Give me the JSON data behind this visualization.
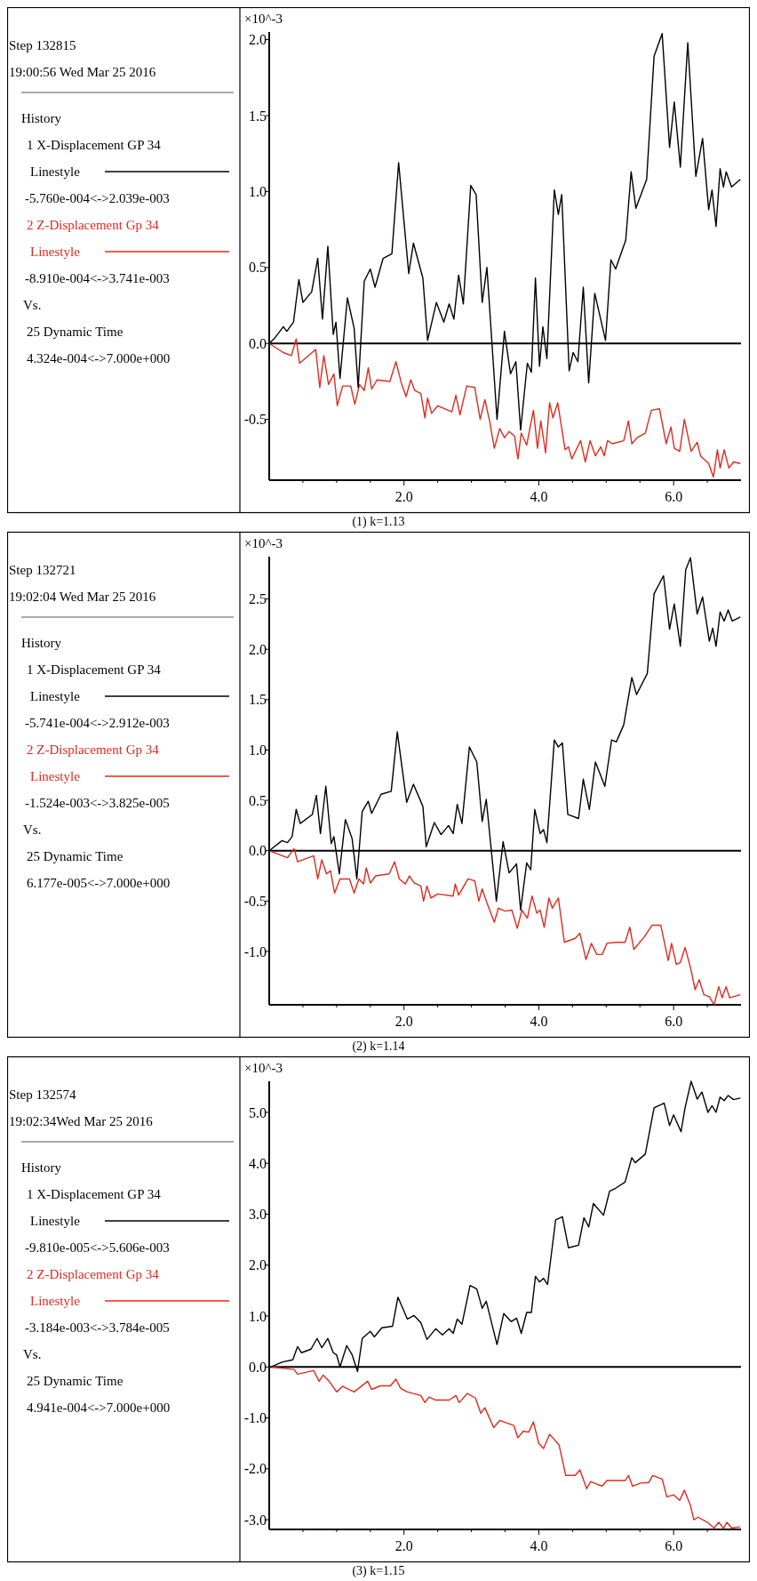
{
  "chart_data": [
    {
      "type": "line",
      "title": "(1) k=1.13",
      "ylabel": "×10^-3",
      "legend": "left",
      "xlim": [
        0,
        7
      ],
      "ylim": [
        -0.9,
        2.05
      ],
      "xticks": [
        {
          "value": 0.5,
          "label": null
        },
        {
          "value": 1,
          "label": null
        },
        {
          "value": 1.5,
          "label": null
        },
        {
          "value": 2,
          "label": "2.0"
        },
        {
          "value": 2.5,
          "label": null
        },
        {
          "value": 3,
          "label": null
        },
        {
          "value": 3.5,
          "label": null
        },
        {
          "value": 4,
          "label": "4.0"
        },
        {
          "value": 4.5,
          "label": null
        },
        {
          "value": 5,
          "label": null
        },
        {
          "value": 5.5,
          "label": null
        },
        {
          "value": 6,
          "label": "6.0"
        },
        {
          "value": 6.5,
          "label": null
        }
      ],
      "yticks": [
        {
          "value": -0.5,
          "label": "-0.5"
        },
        {
          "value": 0,
          "label": "0.0"
        },
        0.5,
        {
          "value": 1,
          "label": "1.0"
        },
        1.5,
        {
          "value": 2,
          "label": "2.0"
        }
      ],
      "ref_lines": [
        {
          "axis": "y",
          "value": 0,
          "color": "#000000"
        }
      ],
      "annotations": [
        "Step 132815",
        "19:00:56 Wed Mar 25 2016",
        "History",
        "Linestyle",
        "-5.760e-004<->2.039e-003",
        "Linestyle",
        "-8.910e-004<->3.741e-003",
        "Vs.",
        "25 Dynamic Time",
        "4.324e-004<->7.000e+000"
      ],
      "series": [
        {
          "name": "1 X-Displacement GP 34",
          "color": "#000000",
          "x": [
            0,
            0.09,
            0.21,
            0.26,
            0.36,
            0.44,
            0.5,
            0.63,
            0.72,
            0.79,
            0.87,
            0.95,
            0.99,
            1.05,
            1.16,
            1.26,
            1.32,
            1.41,
            1.5,
            1.57,
            1.69,
            1.82,
            1.92,
            2.07,
            2.14,
            2.28,
            2.35,
            2.48,
            2.59,
            2.67,
            2.74,
            2.81,
            2.88,
            2.99,
            3.07,
            3.16,
            3.23,
            3.38,
            3.49,
            3.58,
            3.66,
            3.73,
            3.83,
            3.89,
            3.95,
            4.01,
            4.06,
            4.12,
            4.23,
            4.29,
            4.34,
            4.45,
            4.51,
            4.58,
            4.66,
            4.74,
            4.83,
            4.99,
            5.07,
            5.14,
            5.29,
            5.37,
            5.44,
            5.6,
            5.71,
            5.83,
            5.94,
            6.01,
            6.1,
            6.21,
            6.33,
            6.43,
            6.52,
            6.57,
            6.63,
            6.69,
            6.74,
            6.78,
            6.86,
            6.99
          ],
          "values": [
            0,
            0.04,
            0.11,
            0.08,
            0.14,
            0.42,
            0.27,
            0.34,
            0.56,
            0.16,
            0.64,
            0.06,
            0.14,
            -0.23,
            0.3,
            0.1,
            -0.29,
            0.41,
            0.49,
            0.37,
            0.56,
            0.59,
            1.19,
            0.46,
            0.66,
            0.43,
            0.02,
            0.27,
            0.14,
            0.26,
            0.16,
            0.45,
            0.26,
            1.04,
            0.98,
            0.27,
            0.5,
            -0.5,
            0.08,
            -0.2,
            -0.12,
            -0.57,
            -0.13,
            -0.19,
            0.43,
            -0.15,
            0.11,
            -0.1,
            1.01,
            0.85,
            0.98,
            -0.18,
            -0.06,
            -0.12,
            0.37,
            -0.26,
            0.33,
            0.02,
            0.55,
            0.49,
            0.68,
            1.13,
            0.89,
            1.08,
            1.89,
            2.04,
            1.29,
            1.59,
            1.16,
            1.98,
            1.1,
            1.35,
            0.88,
            1.01,
            0.77,
            1.15,
            1.03,
            1.13,
            1.03,
            1.08
          ]
        },
        {
          "name": "2 Z-Displacement Gp 34",
          "color": "#e02a1e",
          "x": [
            0,
            0.21,
            0.33,
            0.4,
            0.45,
            0.69,
            0.75,
            0.81,
            0.88,
            0.96,
            1.01,
            1.09,
            1.21,
            1.27,
            1.34,
            1.41,
            1.47,
            1.52,
            1.6,
            1.79,
            1.88,
            1.96,
            2.03,
            2.1,
            2.16,
            2.25,
            2.31,
            2.35,
            2.41,
            2.5,
            2.71,
            2.77,
            2.83,
            2.93,
            3.05,
            3.13,
            3.2,
            3.27,
            3.34,
            3.42,
            3.49,
            3.56,
            3.64,
            3.69,
            3.74,
            3.82,
            3.92,
            3.98,
            4.03,
            4.1,
            4.16,
            4.21,
            4.28,
            4.39,
            4.44,
            4.49,
            4.62,
            4.69,
            4.76,
            4.84,
            4.92,
            4.97,
            5.02,
            5.09,
            5.26,
            5.33,
            5.38,
            5.46,
            5.58,
            5.67,
            5.79,
            5.89,
            5.96,
            6.01,
            6.09,
            6.16,
            6.26,
            6.35,
            6.4,
            6.52,
            6.59,
            6.65,
            6.69,
            6.75,
            6.82,
            6.89,
            6.99
          ],
          "values": [
            0,
            -0.06,
            -0.08,
            0.03,
            -0.13,
            -0.04,
            -0.29,
            -0.08,
            -0.27,
            -0.2,
            -0.41,
            -0.28,
            -0.28,
            -0.4,
            -0.27,
            -0.31,
            -0.16,
            -0.3,
            -0.24,
            -0.25,
            -0.12,
            -0.26,
            -0.35,
            -0.24,
            -0.31,
            -0.33,
            -0.49,
            -0.36,
            -0.46,
            -0.41,
            -0.45,
            -0.34,
            -0.47,
            -0.28,
            -0.29,
            -0.5,
            -0.37,
            -0.51,
            -0.69,
            -0.56,
            -0.62,
            -0.58,
            -0.61,
            -0.76,
            -0.59,
            -0.67,
            -0.44,
            -0.69,
            -0.51,
            -0.72,
            -0.39,
            -0.49,
            -0.39,
            -0.7,
            -0.68,
            -0.76,
            -0.64,
            -0.78,
            -0.64,
            -0.74,
            -0.68,
            -0.74,
            -0.64,
            -0.66,
            -0.64,
            -0.51,
            -0.66,
            -0.62,
            -0.59,
            -0.44,
            -0.43,
            -0.66,
            -0.55,
            -0.69,
            -0.71,
            -0.5,
            -0.71,
            -0.65,
            -0.74,
            -0.79,
            -0.88,
            -0.7,
            -0.82,
            -0.7,
            -0.82,
            -0.78,
            -0.79
          ]
        }
      ]
    },
    {
      "type": "line",
      "title": "(2) k=1.14",
      "ylabel": "×10^-3",
      "legend": "left",
      "xlim": [
        0,
        7
      ],
      "ylim": [
        -1.53,
        2.92
      ],
      "xticks": [
        {
          "value": 0.5,
          "label": null
        },
        {
          "value": 1,
          "label": null
        },
        {
          "value": 1.5,
          "label": null
        },
        {
          "value": 2,
          "label": "2.0"
        },
        {
          "value": 2.5,
          "label": null
        },
        {
          "value": 3,
          "label": null
        },
        {
          "value": 3.5,
          "label": null
        },
        {
          "value": 4,
          "label": "4.0"
        },
        {
          "value": 4.5,
          "label": null
        },
        {
          "value": 5,
          "label": null
        },
        {
          "value": 5.5,
          "label": null
        },
        {
          "value": 6,
          "label": "6.0"
        },
        {
          "value": 6.5,
          "label": null
        }
      ],
      "yticks": [
        {
          "value": -1,
          "label": "-1.0"
        },
        {
          "value": -0.5,
          "label": "-0.5"
        },
        {
          "value": 0,
          "label": "0.0"
        },
        0.5,
        {
          "value": 1,
          "label": "1.0"
        },
        1.5,
        {
          "value": 2,
          "label": "2.0"
        },
        2.5
      ],
      "ref_lines": [
        {
          "axis": "y",
          "value": 0,
          "color": "#000000"
        }
      ],
      "annotations": [
        "Step 132721",
        "19:02:04 Wed Mar 25 2016",
        "History",
        "Linestyle",
        "-5.741e-004<->2.912e-003",
        "Linestyle",
        "-1.524e-003<->3.825e-005",
        "Vs.",
        "25 Dynamic Time",
        "6.177e-005<->7.000e+000"
      ],
      "series": [
        {
          "name": "1 X-Displacement GP 34",
          "color": "#000000",
          "x": [
            0,
            0.19,
            0.27,
            0.34,
            0.4,
            0.46,
            0.64,
            0.7,
            0.76,
            0.84,
            0.92,
            0.96,
            1.04,
            1.13,
            1.23,
            1.3,
            1.38,
            1.47,
            1.52,
            1.66,
            1.81,
            1.9,
            2.04,
            2.14,
            2.28,
            2.33,
            2.45,
            2.55,
            2.66,
            2.73,
            2.79,
            2.86,
            2.97,
            3.08,
            3.16,
            3.22,
            3.37,
            3.47,
            3.56,
            3.67,
            3.73,
            3.82,
            3.88,
            3.94,
            4.02,
            4.07,
            4.12,
            4.23,
            4.29,
            4.35,
            4.43,
            4.59,
            4.66,
            4.75,
            4.84,
            4.98,
            5.08,
            5.15,
            5.26,
            5.38,
            5.45,
            5.61,
            5.71,
            5.85,
            5.94,
            6.01,
            6.1,
            6.18,
            6.25,
            6.35,
            6.43,
            6.53,
            6.58,
            6.63,
            6.69,
            6.75,
            6.81,
            6.87,
            6.99
          ],
          "values": [
            0,
            0.1,
            0.08,
            0.14,
            0.41,
            0.27,
            0.36,
            0.55,
            0.17,
            0.64,
            0.07,
            0.14,
            -0.23,
            0.31,
            0.12,
            -0.28,
            0.39,
            0.49,
            0.37,
            0.56,
            0.59,
            1.18,
            0.48,
            0.66,
            0.44,
            0.04,
            0.28,
            0.16,
            0.25,
            0.17,
            0.46,
            0.27,
            1.03,
            0.88,
            0.29,
            0.51,
            -0.5,
            0.09,
            -0.22,
            -0.13,
            -0.59,
            -0.12,
            -0.19,
            0.41,
            0.17,
            0.21,
            0.08,
            1.1,
            1.03,
            1.07,
            0.36,
            0.32,
            0.71,
            0.41,
            0.88,
            0.64,
            1.1,
            1.08,
            1.25,
            1.72,
            1.55,
            1.76,
            2.55,
            2.73,
            2.2,
            2.45,
            2.03,
            2.79,
            2.91,
            2.35,
            2.52,
            2.08,
            2.21,
            2.03,
            2.37,
            2.28,
            2.39,
            2.28,
            2.32
          ]
        },
        {
          "name": "2 Z-Displacement Gp 34",
          "color": "#e02a1e",
          "x": [
            0,
            0.27,
            0.37,
            0.42,
            0.66,
            0.72,
            0.78,
            0.85,
            0.91,
            0.97,
            1.05,
            1.19,
            1.26,
            1.33,
            1.4,
            1.44,
            1.5,
            1.58,
            1.78,
            1.86,
            1.93,
            2.02,
            2.08,
            2.15,
            2.25,
            2.29,
            2.34,
            2.4,
            2.5,
            2.73,
            2.76,
            2.81,
            2.95,
            3.05,
            3.11,
            3.16,
            3.22,
            3.34,
            3.4,
            3.5,
            3.6,
            3.68,
            3.75,
            3.83,
            3.9,
            3.97,
            4.02,
            4.08,
            4.15,
            4.2,
            4.29,
            4.38,
            4.54,
            4.61,
            4.7,
            4.78,
            4.86,
            4.94,
            5.01,
            5.14,
            5.28,
            5.35,
            5.41,
            5.56,
            5.68,
            5.81,
            5.92,
            5.97,
            6.04,
            6.1,
            6.17,
            6.25,
            6.32,
            6.38,
            6.45,
            6.53,
            6.6,
            6.67,
            6.72,
            6.78,
            6.83,
            6.99
          ],
          "values": [
            0,
            -0.07,
            0.02,
            -0.11,
            -0.05,
            -0.28,
            -0.09,
            -0.23,
            -0.2,
            -0.42,
            -0.28,
            -0.28,
            -0.42,
            -0.28,
            -0.33,
            -0.17,
            -0.32,
            -0.25,
            -0.23,
            -0.11,
            -0.28,
            -0.33,
            -0.25,
            -0.32,
            -0.35,
            -0.5,
            -0.35,
            -0.47,
            -0.43,
            -0.45,
            -0.33,
            -0.44,
            -0.28,
            -0.3,
            -0.5,
            -0.38,
            -0.5,
            -0.71,
            -0.57,
            -0.6,
            -0.59,
            -0.77,
            -0.59,
            -0.67,
            -0.45,
            -0.62,
            -0.59,
            -0.76,
            -0.47,
            -0.57,
            -0.47,
            -0.91,
            -0.87,
            -0.82,
            -1.08,
            -0.92,
            -1.03,
            -1.03,
            -0.92,
            -0.91,
            -0.91,
            -0.76,
            -0.98,
            -0.86,
            -0.74,
            -0.74,
            -1.09,
            -0.92,
            -1.13,
            -1.11,
            -0.96,
            -1.16,
            -1.38,
            -1.28,
            -1.43,
            -1.45,
            -1.53,
            -1.35,
            -1.46,
            -1.35,
            -1.46,
            -1.43
          ]
        }
      ]
    },
    {
      "type": "line",
      "title": "(3) k=1.15",
      "ylabel": "×10^-3",
      "legend": "left",
      "xlim": [
        0,
        7
      ],
      "ylim": [
        -3.19,
        5.61
      ],
      "xticks": [
        {
          "value": 0.5,
          "label": null
        },
        {
          "value": 1,
          "label": null
        },
        {
          "value": 1.5,
          "label": null
        },
        {
          "value": 2,
          "label": "2.0"
        },
        {
          "value": 2.5,
          "label": null
        },
        {
          "value": 3,
          "label": null
        },
        {
          "value": 3.5,
          "label": null
        },
        {
          "value": 4,
          "label": "4.0"
        },
        {
          "value": 4.5,
          "label": null
        },
        {
          "value": 5,
          "label": null
        },
        {
          "value": 5.5,
          "label": null
        },
        {
          "value": 6,
          "label": "6.0"
        },
        {
          "value": 6.5,
          "label": null
        }
      ],
      "yticks": [
        {
          "value": -3,
          "label": "-3.0"
        },
        {
          "value": -2,
          "label": "-2.0"
        },
        {
          "value": -1,
          "label": "-1.0"
        },
        {
          "value": 0,
          "label": "0.0"
        },
        {
          "value": 1,
          "label": "1.0"
        },
        {
          "value": 2,
          "label": "2.0"
        },
        {
          "value": 3,
          "label": "3.0"
        },
        {
          "value": 4,
          "label": "4.0"
        },
        {
          "value": 5,
          "label": "5.0"
        }
      ],
      "ref_lines": [
        {
          "axis": "y",
          "value": 0,
          "color": "#000000"
        }
      ],
      "annotations": [
        "Step 132574",
        "19:02:34Wed Mar 25 2016",
        "History",
        "Linestyle",
        "-9.810e-005<->5.606e-003",
        "Linestyle",
        "-3.184e-003<->3.784e-005",
        "Vs.",
        "25 Dynamic Time",
        "4.941e-004<->7.000e+000"
      ],
      "series": [
        {
          "name": "1 X-Displacement GP 34",
          "color": "#000000",
          "x": [
            0.02,
            0.2,
            0.35,
            0.42,
            0.48,
            0.62,
            0.71,
            0.78,
            0.87,
            0.95,
            1,
            1.05,
            1.15,
            1.23,
            1.31,
            1.38,
            1.5,
            1.56,
            1.67,
            1.83,
            1.91,
            2.05,
            2.15,
            2.25,
            2.34,
            2.47,
            2.57,
            2.67,
            2.73,
            2.79,
            2.86,
            2.98,
            3.08,
            3.16,
            3.22,
            3.38,
            3.48,
            3.59,
            3.67,
            3.74,
            3.82,
            3.89,
            3.95,
            4.01,
            4.07,
            4.13,
            4.25,
            4.35,
            4.44,
            4.59,
            4.67,
            4.74,
            4.81,
            4.96,
            5.05,
            5.14,
            5.28,
            5.38,
            5.43,
            5.58,
            5.71,
            5.86,
            5.94,
            6,
            6.11,
            6.17,
            6.26,
            6.35,
            6.42,
            6.51,
            6.57,
            6.63,
            6.69,
            6.75,
            6.81,
            6.89,
            6.99
          ],
          "values": [
            0,
            0.1,
            0.14,
            0.4,
            0.28,
            0.35,
            0.56,
            0.38,
            0.56,
            0.28,
            0.24,
            0,
            0.42,
            0.24,
            -0.09,
            0.56,
            0.7,
            0.59,
            0.77,
            0.8,
            1.37,
            0.94,
            1.01,
            0.87,
            0.54,
            0.75,
            0.63,
            0.75,
            0.66,
            0.94,
            0.84,
            1.6,
            1.53,
            1.15,
            1.29,
            0.44,
            1.05,
            0.89,
            0.96,
            0.66,
            1.07,
            1.07,
            1.78,
            1.67,
            1.74,
            1.62,
            2.89,
            2.95,
            2.34,
            2.39,
            2.93,
            2.75,
            3.21,
            2.98,
            3.45,
            3.51,
            3.63,
            4.11,
            4.01,
            4.18,
            5.09,
            5.18,
            4.74,
            4.95,
            4.62,
            5.09,
            5.61,
            5.26,
            5.4,
            5,
            5.13,
            5,
            5.3,
            5.23,
            5.33,
            5.25,
            5.28
          ]
        },
        {
          "name": "2 Z-Displacement Gp 34",
          "color": "#e02a1e",
          "x": [
            0.02,
            0.37,
            0.42,
            0.66,
            0.74,
            0.8,
            0.89,
            1,
            1.09,
            1.26,
            1.46,
            1.52,
            1.65,
            1.8,
            1.88,
            1.95,
            2.05,
            2.25,
            2.31,
            2.37,
            2.47,
            2.67,
            2.77,
            2.82,
            2.94,
            3.06,
            3.14,
            3.2,
            3.33,
            3.42,
            3.63,
            3.69,
            3.77,
            3.85,
            3.92,
            4,
            4.07,
            4.16,
            4.3,
            4.4,
            4.54,
            4.61,
            4.71,
            4.77,
            4.86,
            4.94,
            5.01,
            5.28,
            5.33,
            5.39,
            5.51,
            5.63,
            5.69,
            5.83,
            5.9,
            6,
            6.09,
            6.16,
            6.25,
            6.3,
            6.36,
            6.5,
            6.6,
            6.67,
            6.74,
            6.79,
            6.86,
            6.99
          ],
          "values": [
            0,
            -0.05,
            -0.14,
            -0.07,
            -0.28,
            -0.16,
            -0.28,
            -0.49,
            -0.38,
            -0.49,
            -0.28,
            -0.44,
            -0.37,
            -0.37,
            -0.24,
            -0.42,
            -0.49,
            -0.56,
            -0.7,
            -0.59,
            -0.65,
            -0.65,
            -0.56,
            -0.7,
            -0.52,
            -0.61,
            -0.91,
            -0.8,
            -1.19,
            -1.05,
            -1.15,
            -1.39,
            -1.26,
            -1.28,
            -1.08,
            -1.5,
            -1.6,
            -1.32,
            -1.53,
            -2.13,
            -2.13,
            -2.02,
            -2.39,
            -2.25,
            -2.3,
            -2.34,
            -2.23,
            -2.23,
            -2.13,
            -2.34,
            -2.28,
            -2.27,
            -2.13,
            -2.2,
            -2.55,
            -2.51,
            -2.62,
            -2.42,
            -2.72,
            -3,
            -2.95,
            -3.05,
            -3.16,
            -3.05,
            -3.17,
            -3.05,
            -3.16,
            -3.14
          ]
        }
      ]
    }
  ]
}
